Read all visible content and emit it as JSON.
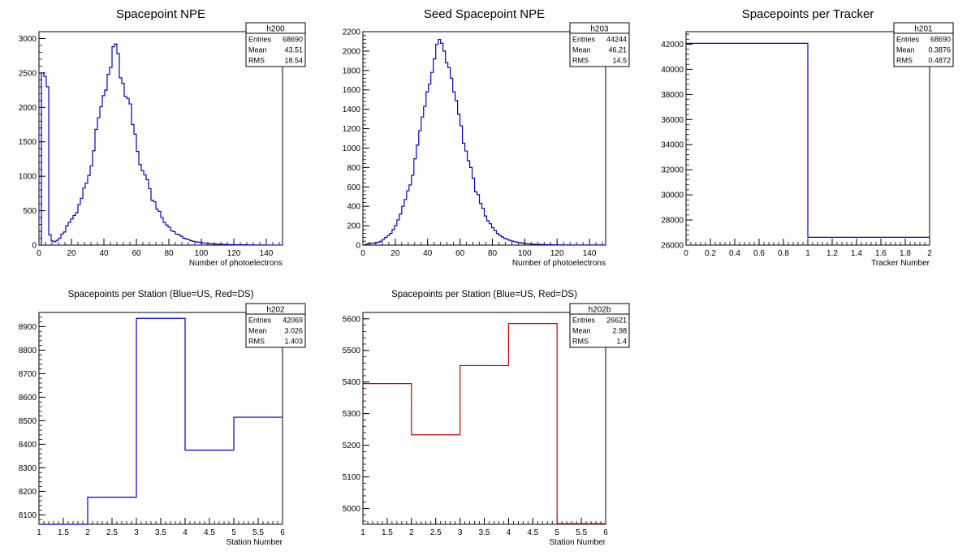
{
  "colors": {
    "blue": "#0000c8",
    "red": "#c80000",
    "axis": "#000000"
  },
  "chart_data": [
    {
      "type": "histogram",
      "title": "Spacepoint NPE",
      "xlabel": "Number of photoelectrons",
      "ylabel": "",
      "xlim": [
        0,
        150
      ],
      "ylim": [
        0,
        3100
      ],
      "xticks": [
        0,
        20,
        40,
        60,
        80,
        100,
        120,
        140
      ],
      "yticks": [
        0,
        500,
        1000,
        1500,
        2000,
        2500,
        3000
      ],
      "color": "blue",
      "stats": {
        "name": "h200",
        "rows": [
          [
            "Entries",
            "68690"
          ],
          [
            "Mean",
            "43.51"
          ],
          [
            "RMS",
            "18.54"
          ]
        ]
      },
      "bin_width": 1.5,
      "bin_centers_x0": 0.75,
      "values": [
        0,
        2500,
        2450,
        2300,
        150,
        60,
        50,
        70,
        100,
        160,
        190,
        280,
        330,
        380,
        430,
        470,
        590,
        680,
        830,
        900,
        1010,
        1150,
        1370,
        1680,
        1850,
        2010,
        2170,
        2250,
        2480,
        2580,
        2880,
        2920,
        2780,
        2430,
        2350,
        2160,
        2130,
        2050,
        1750,
        1610,
        1360,
        1170,
        1080,
        1020,
        950,
        820,
        650,
        630,
        520,
        490,
        400,
        330,
        290,
        260,
        210,
        195,
        160,
        150,
        130,
        100,
        90,
        80,
        65,
        55,
        48,
        43,
        38,
        30,
        27,
        24,
        20,
        18,
        15,
        14,
        12,
        10,
        9,
        8,
        7,
        6,
        6,
        5,
        5,
        4,
        4,
        3,
        3,
        3,
        2,
        2,
        2,
        2,
        2,
        1,
        1,
        1,
        1,
        1,
        1,
        1
      ]
    },
    {
      "type": "histogram",
      "title": "Seed Spacepoint NPE",
      "xlabel": "Number of photoelectrons",
      "ylabel": "",
      "xlim": [
        0,
        150
      ],
      "ylim": [
        0,
        2200
      ],
      "xticks": [
        0,
        20,
        40,
        60,
        80,
        100,
        120,
        140
      ],
      "yticks": [
        0,
        200,
        400,
        600,
        800,
        1000,
        1200,
        1400,
        1600,
        1800,
        2000,
        2200
      ],
      "color": "blue",
      "stats": {
        "name": "h203",
        "rows": [
          [
            "Entries",
            "44244"
          ],
          [
            "Mean",
            "46.21"
          ],
          [
            "RMS",
            "14.5"
          ]
        ]
      },
      "bin_width": 1.5,
      "bin_centers_x0": 0.75,
      "values": [
        0,
        10,
        15,
        20,
        20,
        25,
        30,
        40,
        60,
        80,
        100,
        120,
        160,
        200,
        260,
        320,
        400,
        470,
        560,
        620,
        720,
        890,
        1030,
        1180,
        1320,
        1430,
        1580,
        1660,
        1780,
        1920,
        2070,
        2120,
        2080,
        2000,
        1880,
        1830,
        1720,
        1580,
        1490,
        1350,
        1230,
        1050,
        970,
        870,
        800,
        690,
        550,
        520,
        430,
        380,
        300,
        250,
        220,
        180,
        150,
        120,
        100,
        85,
        70,
        60,
        50,
        42,
        35,
        30,
        26,
        22,
        18,
        15,
        13,
        11,
        9,
        8,
        7,
        6,
        5,
        4,
        4,
        3,
        3,
        2,
        2,
        2,
        2,
        1,
        1,
        1,
        1,
        1,
        1,
        1,
        1,
        1,
        1,
        1,
        1,
        1,
        1,
        1,
        1,
        1
      ]
    },
    {
      "type": "histogram",
      "title": "Spacepoints per Tracker",
      "xlabel": "Tracker Number",
      "ylabel": "",
      "xlim": [
        0,
        2
      ],
      "ylim": [
        26000,
        43000
      ],
      "xticks": [
        0,
        0.2,
        0.4,
        0.6,
        0.8,
        1,
        1.2,
        1.4,
        1.6,
        1.8,
        2
      ],
      "xtick_labels": [
        "0",
        "0.2",
        "0.4",
        "0.6",
        "0.8",
        "1",
        "1.2",
        "1.4",
        "1.6",
        "1.8",
        "2"
      ],
      "yticks": [
        26000,
        28000,
        30000,
        32000,
        34000,
        36000,
        38000,
        40000,
        42000
      ],
      "color": "blue",
      "stats": {
        "name": "h201",
        "rows": [
          [
            "Entries",
            "68690"
          ],
          [
            "Mean",
            "0.3876"
          ],
          [
            "RMS",
            "0.4872"
          ]
        ]
      },
      "edges": [
        0,
        1,
        2
      ],
      "values": [
        42069,
        26621
      ]
    },
    {
      "type": "histogram",
      "title": "Spacepoints per Station (Blue=US, Red=DS)",
      "xlabel": "Station Number",
      "ylabel": "",
      "xlim": [
        1,
        6
      ],
      "ylim": [
        8060,
        8960
      ],
      "xticks": [
        1,
        1.5,
        2,
        2.5,
        3,
        3.5,
        4,
        4.5,
        5,
        5.5,
        6
      ],
      "xtick_labels": [
        "1",
        "1.5",
        "2",
        "2.5",
        "3",
        "3.5",
        "4",
        "4.5",
        "5",
        "5.5",
        "6"
      ],
      "yticks": [
        8100,
        8200,
        8300,
        8400,
        8500,
        8600,
        8700,
        8800,
        8900
      ],
      "color": "blue",
      "stats": {
        "name": "h202",
        "rows": [
          [
            "Entries",
            "42069"
          ],
          [
            "Mean",
            "3.026"
          ],
          [
            "RMS",
            "1.403"
          ]
        ]
      },
      "edges": [
        1,
        2,
        3,
        4,
        5,
        6
      ],
      "values": [
        8060,
        8175,
        8935,
        8375,
        8515
      ]
    },
    {
      "type": "histogram",
      "title": "Spacepoints per Station (Blue=US, Red=DS)",
      "xlabel": "Station Number",
      "ylabel": "",
      "xlim": [
        1,
        6
      ],
      "ylim": [
        4950,
        5620
      ],
      "xticks": [
        1,
        1.5,
        2,
        2.5,
        3,
        3.5,
        4,
        4.5,
        5,
        5.5,
        6
      ],
      "xtick_labels": [
        "1",
        "1.5",
        "2",
        "2.5",
        "3",
        "3.5",
        "4",
        "4.5",
        "5",
        "5.5",
        "6"
      ],
      "yticks": [
        5000,
        5100,
        5200,
        5300,
        5400,
        5500,
        5600
      ],
      "color": "red",
      "stats": {
        "name": "h202b",
        "rows": [
          [
            "Entries",
            "26621"
          ],
          [
            "Mean",
            "2.98"
          ],
          [
            "RMS",
            "1.4"
          ]
        ]
      },
      "edges": [
        1,
        2,
        3,
        4,
        5,
        6
      ],
      "values": [
        5395,
        5233,
        5452,
        5585,
        4952
      ]
    }
  ]
}
